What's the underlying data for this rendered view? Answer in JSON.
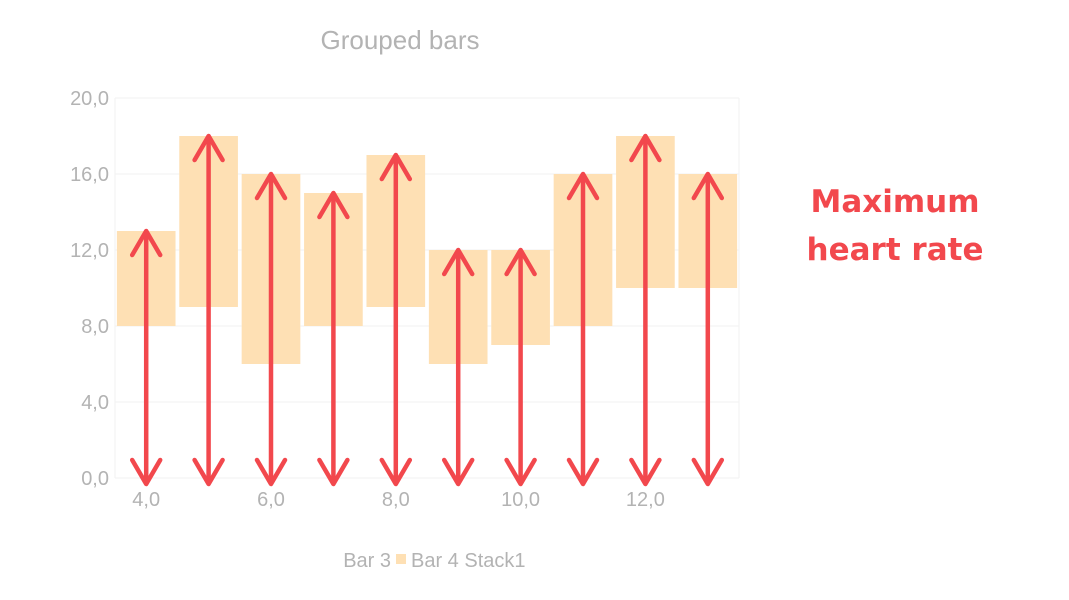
{
  "chart_data": {
    "type": "bar",
    "title": "Grouped bars",
    "xlabel": "",
    "ylabel": "",
    "x": [
      4,
      5,
      6,
      7,
      8,
      9,
      10,
      11,
      12,
      13
    ],
    "series": [
      {
        "name": "Bar 3",
        "values": [
          0,
          0,
          0,
          0,
          0,
          0,
          0,
          0,
          0,
          0
        ]
      },
      {
        "name": "Bar 4 Stack1",
        "low": [
          8,
          9,
          6,
          8,
          9,
          6,
          7,
          8,
          10,
          10
        ],
        "high": [
          13,
          18,
          16,
          15,
          17,
          12,
          12,
          16,
          18,
          16
        ]
      }
    ],
    "xlim": [
      3.5,
      13.5
    ],
    "ylim": [
      0,
      20
    ],
    "xticks": [
      "4,0",
      "6,0",
      "8,0",
      "10,0",
      "12,0"
    ],
    "xtick_values": [
      4,
      6,
      8,
      10,
      12
    ],
    "yticks": [
      "0,0",
      "4,0",
      "8,0",
      "12,0",
      "16,0",
      "20,0"
    ],
    "ytick_values": [
      0,
      4,
      8,
      12,
      16,
      20
    ],
    "grid": true,
    "legend_position": "bottom",
    "annotation": {
      "type": "arrows",
      "description_lines": [
        "Maximum",
        "heart rate"
      ],
      "arrow_from": 0,
      "arrow_to": "high"
    },
    "colors": {
      "bar_fill": "#fee0b4",
      "arrow": "#f2484d",
      "axis_text": "#b3b3b3",
      "grid": "#f2f2f2"
    }
  }
}
